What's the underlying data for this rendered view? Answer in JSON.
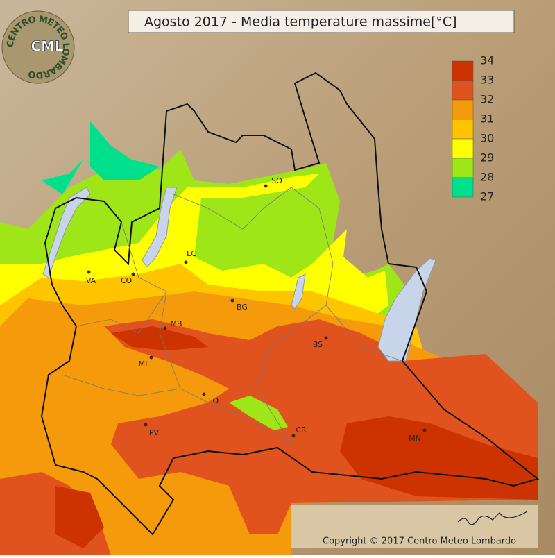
{
  "title": "Agosto 2017 - Media temperature massime[°C]",
  "logo": {
    "ring": "CENTRO METEO LOMBARDO",
    "initials": "CML"
  },
  "legend": [
    {
      "label": 34,
      "color": "#cc3300"
    },
    {
      "label": 33,
      "color": "#e0531f"
    },
    {
      "label": 32,
      "color": "#f59a0a"
    },
    {
      "label": 31,
      "color": "#ffc400"
    },
    {
      "label": 30,
      "color": "#ffff00"
    },
    {
      "label": 29,
      "color": "#9ee617"
    },
    {
      "label": 28,
      "color": "#00e08c"
    }
  ],
  "legend_last": {
    "label": 27
  },
  "cities": [
    "SO",
    "LC",
    "VA",
    "CO",
    "BG",
    "MB",
    "BS",
    "MI",
    "LO",
    "PV",
    "CR",
    "MN"
  ],
  "copyright": "Copyright © 2017 Centro Meteo Lombardo"
}
